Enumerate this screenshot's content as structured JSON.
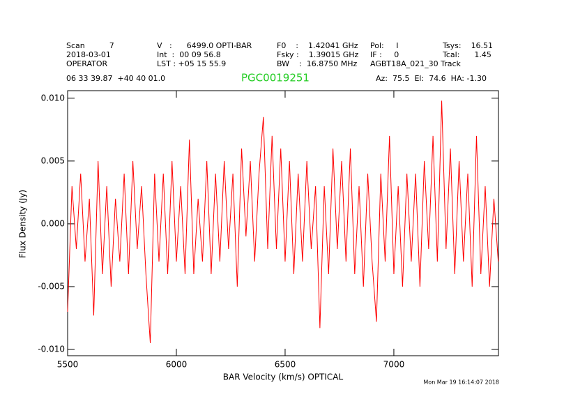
{
  "chart_data": {
    "type": "line",
    "header": [
      [
        "Scan          7",
        "2018-03-01",
        "OPERATOR"
      ],
      [
        "V   :      6499.0 OPTI-BAR",
        "Int  :  00 09 56.8",
        "LST : +05 15 55.9"
      ],
      [
        "F0    :    1.42041 GHz",
        "Fsky :    1.39015 GHz",
        "BW    :  16.8750 MHz"
      ],
      [
        "Pol:     I",
        "IF :     0",
        "AGBT18A_021_30 Track"
      ],
      [
        "Tsys:    16.51",
        "Tcal:      1.45"
      ]
    ],
    "coords": "06 33 39.87  +40 40 01.0",
    "title": "PGC0019251",
    "pointing": "Az:  75.5  El:  74.6  HA: -1.30",
    "timestamp": "Mon Mar 19 16:14:07 2018",
    "xlabel": "BAR Velocity (km/s) OPTICAL",
    "ylabel": "Flux Density (Jy)",
    "xlim": [
      5500,
      7481
    ],
    "ylim": [
      -0.0105,
      0.0106
    ],
    "xticks": [
      5500,
      6000,
      6500,
      7000
    ],
    "yticks": [
      {
        "value": 0.01,
        "label": "0.010"
      },
      {
        "value": 0.005,
        "label": "0.005"
      },
      {
        "value": 0,
        "label": "0.000"
      },
      {
        "value": -0.005,
        "label": "-0.005"
      },
      {
        "value": -0.01,
        "label": "-0.010"
      }
    ],
    "color": "#ff0000",
    "x": [
      5500,
      5520,
      5540,
      5560,
      5580,
      5600,
      5620,
      5640,
      5660,
      5680,
      5700,
      5720,
      5740,
      5760,
      5780,
      5800,
      5820,
      5840,
      5860,
      5880,
      5900,
      5920,
      5940,
      5960,
      5980,
      6000,
      6020,
      6040,
      6060,
      6080,
      6100,
      6120,
      6140,
      6160,
      6180,
      6200,
      6220,
      6240,
      6260,
      6280,
      6300,
      6320,
      6340,
      6360,
      6380,
      6400,
      6420,
      6440,
      6460,
      6480,
      6500,
      6520,
      6540,
      6560,
      6580,
      6600,
      6620,
      6640,
      6660,
      6680,
      6700,
      6720,
      6740,
      6760,
      6780,
      6800,
      6820,
      6840,
      6860,
      6880,
      6900,
      6920,
      6940,
      6960,
      6980,
      7000,
      7020,
      7040,
      7060,
      7080,
      7100,
      7120,
      7140,
      7160,
      7180,
      7200,
      7220,
      7240,
      7260,
      7280,
      7300,
      7320,
      7340,
      7360,
      7380,
      7400,
      7420,
      7440,
      7460,
      7480
    ],
    "values": [
      -0.007,
      0.003,
      -0.002,
      0.004,
      -0.003,
      0.002,
      -0.0073,
      0.005,
      -0.004,
      0.003,
      -0.005,
      0.002,
      -0.003,
      0.004,
      -0.004,
      0.005,
      -0.002,
      0.003,
      -0.004,
      -0.0095,
      0.004,
      -0.003,
      0.004,
      -0.004,
      0.005,
      -0.003,
      0.003,
      -0.004,
      0.0067,
      -0.004,
      0.002,
      -0.003,
      0.005,
      -0.004,
      0.004,
      -0.003,
      0.005,
      -0.002,
      0.004,
      -0.005,
      0.006,
      -0.001,
      0.005,
      -0.003,
      0.004,
      0.0085,
      -0.002,
      0.007,
      -0.002,
      0.006,
      -0.003,
      0.005,
      -0.004,
      0.004,
      -0.003,
      0.005,
      -0.002,
      0.003,
      -0.0083,
      0.003,
      -0.004,
      0.006,
      -0.002,
      0.005,
      -0.003,
      0.006,
      -0.004,
      0.003,
      -0.005,
      0.004,
      -0.003,
      -0.0078,
      0.004,
      -0.003,
      0.007,
      -0.004,
      0.003,
      -0.005,
      0.004,
      -0.003,
      0.004,
      -0.005,
      0.005,
      -0.002,
      0.007,
      -0.003,
      0.0098,
      -0.002,
      0.006,
      -0.004,
      0.005,
      -0.003,
      0.004,
      -0.005,
      0.007,
      -0.004,
      0.003,
      -0.005,
      0.002,
      -0.003
    ]
  }
}
